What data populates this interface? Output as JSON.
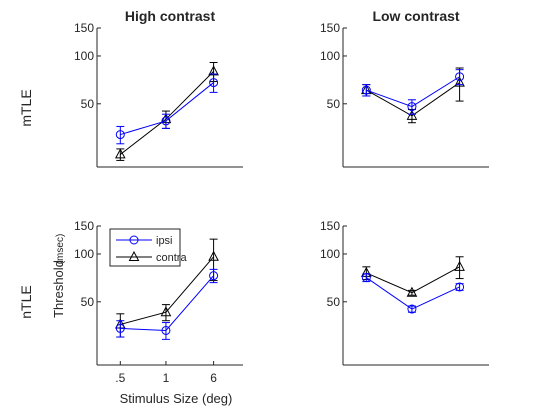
{
  "figure": {
    "xlabel": "Stimulus Size (deg)",
    "ylabel_main": "Threshold",
    "ylabel_unit": "(msec)",
    "row_labels": [
      "mTLE",
      "nTLE"
    ],
    "legend": [
      "ipsi",
      "contra"
    ],
    "colors": {
      "ipsi": "#0000ff",
      "contra": "#000000",
      "axis": "#262626"
    }
  },
  "chart_data": [
    {
      "type": "line",
      "title": "High contrast",
      "row_label": "mTLE",
      "y_scale": "log",
      "ylim": [
        20,
        150
      ],
      "yticks": [
        50,
        100,
        150
      ],
      "ytick_labels": [
        "50",
        "100",
        "150"
      ],
      "categories": [
        ".5",
        "1",
        "6"
      ],
      "show_xticks": false,
      "series": [
        {
          "name": "ipsi",
          "marker": "circle",
          "values": [
            32,
            39,
            68
          ],
          "err": [
            4,
            4,
            9
          ]
        },
        {
          "name": "contra",
          "marker": "triangle",
          "values": [
            24,
            40,
            80
          ],
          "err": [
            2,
            5,
            11
          ]
        }
      ]
    },
    {
      "type": "line",
      "title": "Low contrast",
      "row_label": "mTLE",
      "y_scale": "log",
      "ylim": [
        20,
        150
      ],
      "yticks": [
        50,
        100,
        150
      ],
      "ytick_labels": [
        "50",
        "100",
        "150"
      ],
      "categories": [
        ".5",
        "1",
        "6"
      ],
      "show_xticks": false,
      "series": [
        {
          "name": "ipsi",
          "marker": "circle",
          "values": [
            61,
            48,
            74
          ],
          "err": [
            5,
            5,
            8
          ]
        },
        {
          "name": "contra",
          "marker": "triangle",
          "values": [
            61,
            42,
            68
          ],
          "err": [
            5,
            4,
            16
          ]
        }
      ]
    },
    {
      "type": "line",
      "title": "",
      "row_label": "nTLE",
      "y_scale": "log",
      "ylim": [
        20,
        150
      ],
      "yticks": [
        50,
        100,
        150
      ],
      "ytick_labels": [
        "50",
        "100",
        "150"
      ],
      "categories": [
        ".5",
        "1",
        "6"
      ],
      "show_xticks": true,
      "series": [
        {
          "name": "ipsi",
          "marker": "circle",
          "values": [
            34,
            33,
            73
          ],
          "err": [
            4,
            4,
            7
          ]
        },
        {
          "name": "contra",
          "marker": "triangle",
          "values": [
            36,
            43,
            96
          ],
          "err": [
            6,
            5,
            28
          ]
        }
      ]
    },
    {
      "type": "line",
      "title": "",
      "row_label": "nTLE",
      "y_scale": "log",
      "ylim": [
        20,
        150
      ],
      "yticks": [
        50,
        100,
        150
      ],
      "ytick_labels": [
        "50",
        "100",
        "150"
      ],
      "categories": [
        ".5",
        "1",
        "6"
      ],
      "show_xticks": false,
      "series": [
        {
          "name": "ipsi",
          "marker": "circle",
          "values": [
            71,
            45,
            62
          ],
          "err": [
            4,
            2,
            3
          ]
        },
        {
          "name": "contra",
          "marker": "triangle",
          "values": [
            76,
            57,
            83
          ],
          "err": [
            7,
            2,
            13
          ]
        }
      ]
    }
  ]
}
